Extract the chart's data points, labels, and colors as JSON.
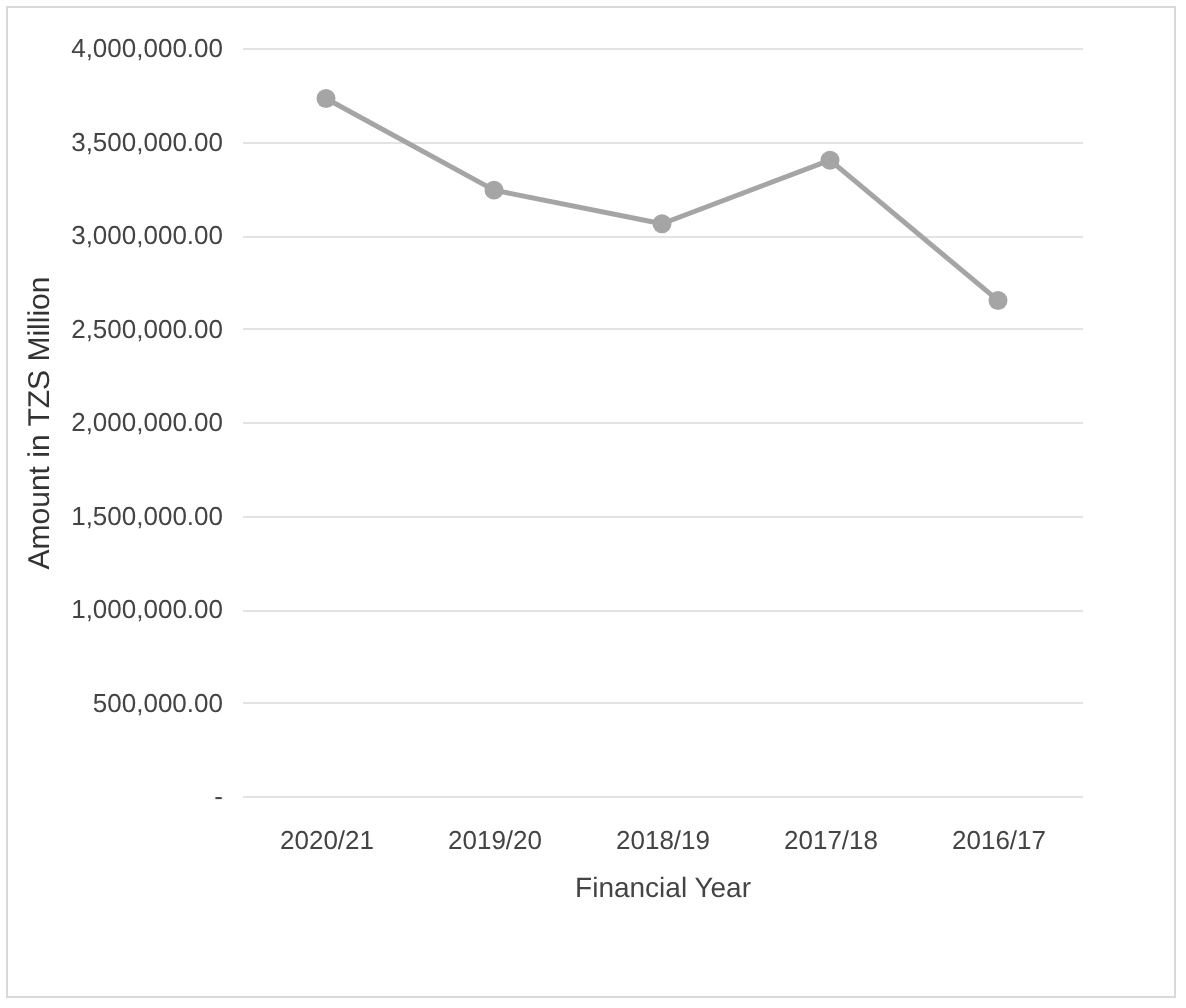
{
  "chart_data": {
    "type": "line",
    "xlabel": "Financial Year",
    "ylabel": "Amount in TZS Million",
    "categories": [
      "2020/21",
      "2019/20",
      "2018/19",
      "2017/18",
      "2016/17"
    ],
    "series": [
      {
        "color": "#a5a5a5",
        "values": [
          3730000,
          3240000,
          3060000,
          3400000,
          2650000
        ]
      }
    ],
    "ylim": [
      0,
      4000000
    ],
    "yticks": [
      {
        "value": 0,
        "label": "-"
      },
      {
        "value": 500000,
        "label": "500,000.00"
      },
      {
        "value": 1000000,
        "label": "1,000,000.00"
      },
      {
        "value": 1500000,
        "label": "1,500,000.00"
      },
      {
        "value": 2000000,
        "label": "2,000,000.00"
      },
      {
        "value": 2500000,
        "label": "2,500,000.00"
      },
      {
        "value": 3000000,
        "label": "3,000,000.00"
      },
      {
        "value": 3500000,
        "label": "3,500,000.00"
      },
      {
        "value": 4000000,
        "label": "4,000,000.00"
      }
    ],
    "grid": "y",
    "marker": "circle",
    "line_style": "solid"
  }
}
